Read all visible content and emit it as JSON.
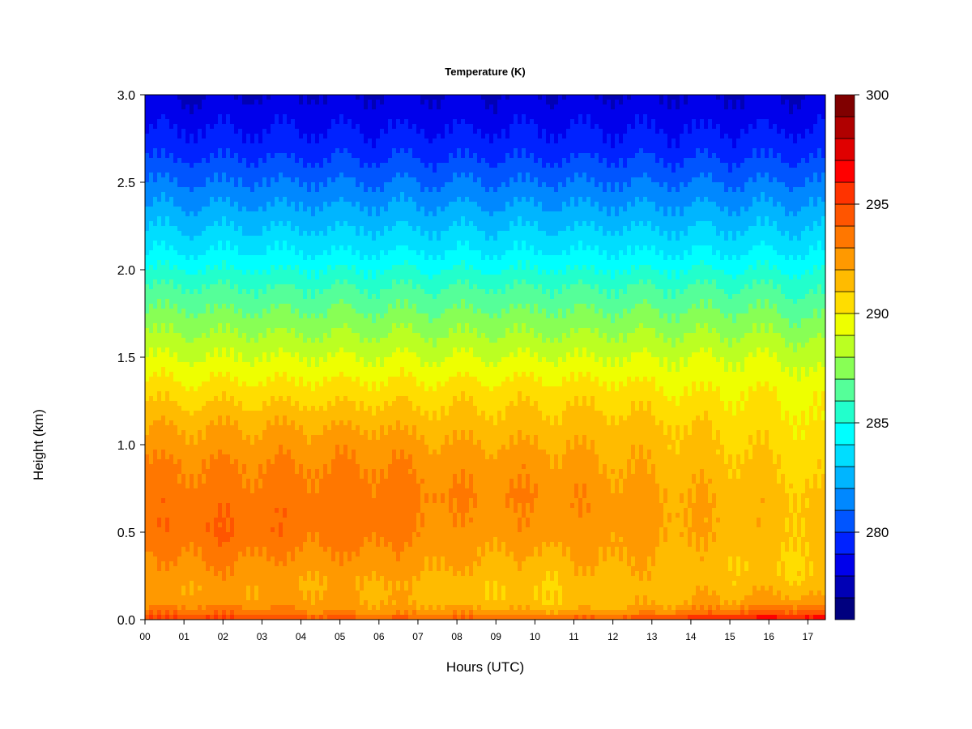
{
  "chart_data": {
    "type": "heatmap",
    "title": "Temperature (K)",
    "xlabel": "Hours (UTC)",
    "ylabel": "Height (km)",
    "x_tick_labels": [
      "00",
      "01",
      "02",
      "03",
      "04",
      "05",
      "06",
      "07",
      "08",
      "09",
      "10",
      "11",
      "12",
      "13",
      "14",
      "15",
      "16",
      "17"
    ],
    "x_range_hours": [
      0,
      17.45
    ],
    "y_tick_labels": [
      "0.0",
      "0.5",
      "1.0",
      "1.5",
      "2.0",
      "2.5",
      "3.0"
    ],
    "y_ticks": [
      0,
      0.5,
      1,
      1.5,
      2,
      2.5,
      3
    ],
    "ylim": [
      0,
      3
    ],
    "colorbar": {
      "range": [
        276,
        300
      ],
      "step": 1,
      "tick_labels": [
        "280",
        "285",
        "290",
        "295",
        "300"
      ],
      "ticks": [
        280,
        285,
        290,
        295,
        300
      ]
    },
    "profile_heights_km": [
      0,
      0.02,
      0.05,
      0.1,
      0.2,
      0.3,
      0.5,
      0.7,
      0.9,
      1.1,
      1.3,
      1.5,
      1.7,
      1.9,
      2.1,
      2.3,
      2.5,
      2.7,
      2.9,
      3.0
    ],
    "profiles": [
      {
        "hour": 0,
        "temperature_k": [
          295.5,
          294.5,
          293.5,
          292.5,
          292.0,
          292.5,
          293.5,
          293.5,
          293.0,
          292.0,
          290.5,
          289.0,
          287.5,
          286.0,
          284.0,
          282.5,
          281.0,
          279.5,
          278.5,
          278.0
        ]
      },
      {
        "hour": 2,
        "temperature_k": [
          295.5,
          294.5,
          293.5,
          292.5,
          292.5,
          293.0,
          294.0,
          293.5,
          293.0,
          292.0,
          290.5,
          289.0,
          287.5,
          286.0,
          284.0,
          282.5,
          281.0,
          279.5,
          278.5,
          278.0
        ]
      },
      {
        "hour": 4,
        "temperature_k": [
          295.0,
          294.0,
          293.0,
          292.5,
          292.0,
          292.5,
          293.5,
          293.5,
          293.0,
          292.0,
          290.5,
          289.0,
          287.5,
          286.0,
          284.0,
          282.5,
          281.0,
          279.5,
          278.5,
          278.0
        ]
      },
      {
        "hour": 6,
        "temperature_k": [
          294.5,
          293.5,
          292.5,
          292.0,
          292.0,
          292.5,
          293.5,
          293.5,
          293.0,
          292.0,
          290.5,
          289.0,
          287.5,
          286.0,
          284.0,
          282.5,
          281.0,
          279.5,
          278.5,
          278.0
        ]
      },
      {
        "hour": 8,
        "temperature_k": [
          294.5,
          293.5,
          292.5,
          291.5,
          291.5,
          292.0,
          292.5,
          293.0,
          292.5,
          291.5,
          290.5,
          289.0,
          287.5,
          286.0,
          284.0,
          282.5,
          281.0,
          279.5,
          278.5,
          278.0
        ]
      },
      {
        "hour": 10,
        "temperature_k": [
          294.5,
          293.0,
          292.0,
          291.0,
          291.0,
          291.5,
          292.5,
          293.0,
          292.5,
          291.5,
          290.5,
          289.0,
          287.5,
          286.0,
          284.0,
          282.5,
          281.0,
          279.5,
          278.5,
          278.0
        ]
      },
      {
        "hour": 12,
        "temperature_k": [
          294.5,
          293.5,
          292.0,
          291.5,
          291.5,
          292.0,
          292.5,
          292.5,
          292.0,
          291.5,
          290.5,
          289.0,
          287.5,
          286.0,
          284.0,
          282.5,
          281.0,
          279.5,
          278.5,
          278.0
        ]
      },
      {
        "hour": 14,
        "temperature_k": [
          296.0,
          294.5,
          293.0,
          292.0,
          291.5,
          291.5,
          292.0,
          292.0,
          291.5,
          291.0,
          290.0,
          289.0,
          287.5,
          286.0,
          284.0,
          282.5,
          281.0,
          279.5,
          278.5,
          278.0
        ]
      },
      {
        "hour": 16,
        "temperature_k": [
          297.0,
          295.5,
          294.0,
          292.5,
          291.5,
          291.0,
          291.5,
          291.5,
          291.0,
          290.5,
          290.0,
          289.0,
          287.5,
          286.0,
          284.0,
          282.5,
          281.0,
          279.5,
          278.5,
          278.0
        ]
      },
      {
        "hour": 17.45,
        "temperature_k": [
          297.0,
          295.5,
          294.0,
          292.5,
          291.0,
          291.0,
          291.0,
          291.0,
          290.5,
          290.0,
          289.5,
          288.5,
          287.0,
          285.5,
          284.0,
          282.5,
          281.0,
          279.5,
          278.5,
          278.0
        ]
      }
    ]
  },
  "colors": {
    "scale": [
      "#00007F",
      "#0000B5",
      "#0000EB",
      "#0022FF",
      "#0055FF",
      "#0088FF",
      "#00B5FF",
      "#00DDFF",
      "#00FFFF",
      "#22FFCC",
      "#55FF99",
      "#88FF55",
      "#BBFF22",
      "#EEFF00",
      "#FFDD00",
      "#FFBB00",
      "#FF9900",
      "#FF7700",
      "#FF5500",
      "#FF3300",
      "#FF0000",
      "#E00000",
      "#B00000",
      "#800000"
    ]
  }
}
